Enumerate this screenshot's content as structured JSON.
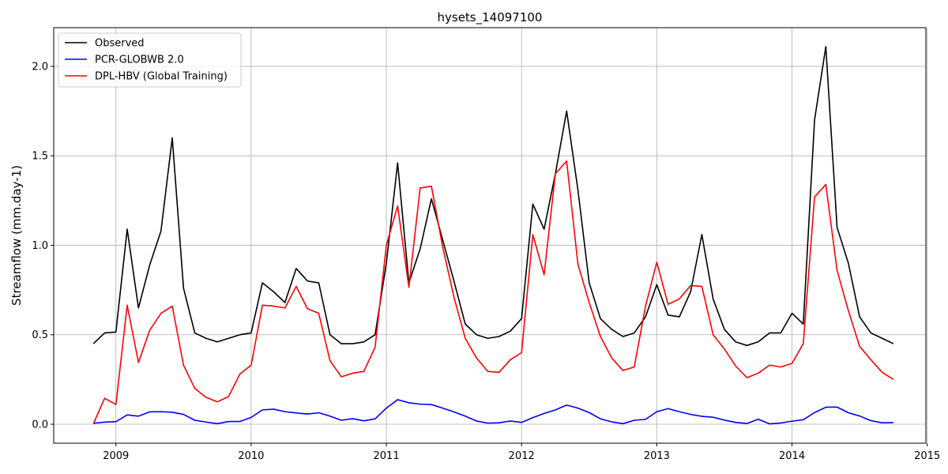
{
  "chart_data": {
    "type": "line",
    "title": "hysets_14097100",
    "xlabel": "",
    "ylabel": "Streamflow (mm.day-1)",
    "xlim": [
      2008.54,
      2014.99
    ],
    "ylim": [
      -0.106,
      2.216
    ],
    "x_ticks": [
      2009,
      2010,
      2011,
      2012,
      2013,
      2014,
      2015
    ],
    "x_tick_labels": [
      "2009",
      "2010",
      "2011",
      "2012",
      "2013",
      "2014",
      "2015"
    ],
    "y_ticks": [
      0.0,
      0.5,
      1.0,
      1.5,
      2.0
    ],
    "y_tick_labels": [
      "0.0",
      "0.5",
      "1.0",
      "1.5",
      "2.0"
    ],
    "grid": true,
    "legend_position": "top-left",
    "x_start_label": "2008-11",
    "x_end_label": "2014-10",
    "series": [
      {
        "name": "Observed",
        "color": "#000000",
        "values": [
          0.45,
          0.51,
          0.515,
          1.09,
          0.65,
          0.89,
          1.08,
          1.6,
          0.76,
          0.51,
          0.48,
          0.46,
          0.48,
          0.5,
          0.51,
          0.79,
          0.74,
          0.68,
          0.87,
          0.8,
          0.79,
          0.5,
          0.45,
          0.45,
          0.46,
          0.5,
          0.9,
          1.46,
          0.79,
          0.98,
          1.26,
          1.03,
          0.8,
          0.56,
          0.5,
          0.48,
          0.49,
          0.52,
          0.59,
          1.23,
          1.09,
          1.4,
          1.75,
          1.31,
          0.79,
          0.59,
          0.53,
          0.49,
          0.51,
          0.6,
          0.78,
          0.61,
          0.6,
          0.74,
          1.06,
          0.7,
          0.53,
          0.46,
          0.44,
          0.46,
          0.51,
          0.51,
          0.62,
          0.56,
          1.7,
          2.11,
          1.1,
          0.9,
          0.6,
          0.51,
          0.48,
          0.45
        ]
      },
      {
        "name": "PCR-GLOBWB 2.0",
        "color": "#0000ff",
        "values": [
          0.005,
          0.012,
          0.014,
          0.052,
          0.045,
          0.069,
          0.07,
          0.067,
          0.055,
          0.022,
          0.012,
          0.003,
          0.015,
          0.015,
          0.038,
          0.08,
          0.084,
          0.07,
          0.063,
          0.057,
          0.064,
          0.045,
          0.022,
          0.031,
          0.019,
          0.03,
          0.09,
          0.137,
          0.12,
          0.112,
          0.11,
          0.09,
          0.069,
          0.045,
          0.018,
          0.006,
          0.008,
          0.018,
          0.01,
          0.037,
          0.06,
          0.08,
          0.107,
          0.09,
          0.065,
          0.03,
          0.013,
          0.003,
          0.022,
          0.027,
          0.07,
          0.087,
          0.07,
          0.055,
          0.044,
          0.039,
          0.023,
          0.01,
          0.004,
          0.028,
          0.002,
          0.007,
          0.017,
          0.025,
          0.065,
          0.095,
          0.096,
          0.064,
          0.046,
          0.02,
          0.008,
          0.009
        ]
      },
      {
        "name": "DPL-HBV (Global Training)",
        "color": "#ff0000",
        "values": [
          0.003,
          0.145,
          0.11,
          0.665,
          0.345,
          0.525,
          0.62,
          0.66,
          0.33,
          0.2,
          0.15,
          0.125,
          0.155,
          0.28,
          0.33,
          0.665,
          0.66,
          0.65,
          0.77,
          0.645,
          0.62,
          0.355,
          0.265,
          0.285,
          0.295,
          0.43,
          1.0,
          1.22,
          0.765,
          1.32,
          1.33,
          0.99,
          0.71,
          0.48,
          0.37,
          0.295,
          0.29,
          0.36,
          0.4,
          1.06,
          0.835,
          1.4,
          1.47,
          0.895,
          0.68,
          0.49,
          0.37,
          0.3,
          0.32,
          0.66,
          0.905,
          0.67,
          0.7,
          0.775,
          0.77,
          0.5,
          0.42,
          0.325,
          0.26,
          0.285,
          0.33,
          0.32,
          0.34,
          0.45,
          1.27,
          1.34,
          0.86,
          0.635,
          0.435,
          0.36,
          0.29,
          0.25
        ]
      }
    ]
  }
}
